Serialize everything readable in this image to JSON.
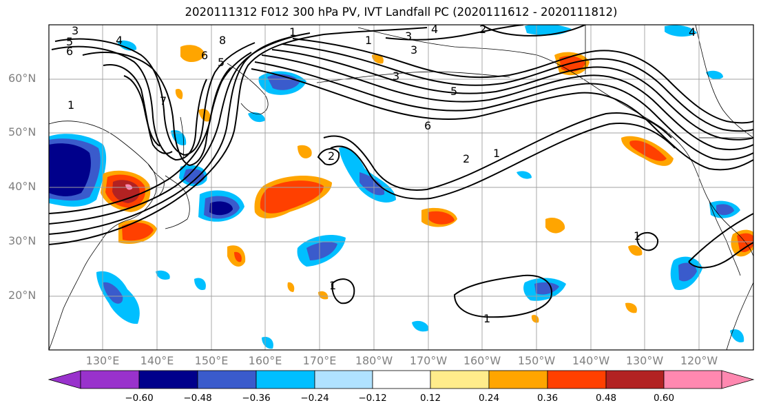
{
  "title": "2020111312 F012 300 hPa PV, IVT Landfall PC (2020111612 - 2020111812)",
  "map": {
    "lat_labels": [
      "60°N",
      "50°N",
      "40°N",
      "30°N",
      "20°N"
    ],
    "lon_labels": [
      "130°E",
      "140°E",
      "150°E",
      "160°E",
      "170°E",
      "180°W",
      "170°W",
      "160°W",
      "150°W",
      "140°W",
      "130°W",
      "120°W"
    ],
    "contour_labels": [
      "3",
      "5",
      "6",
      "4",
      "8",
      "6",
      "5",
      "1",
      "1",
      "3",
      "4",
      "2",
      "3",
      "3",
      "5",
      "6",
      "2",
      "1",
      "1",
      "2",
      "1",
      "1",
      "1",
      "7",
      "4"
    ]
  },
  "colorbar": {
    "ticks": [
      "−0.60",
      "−0.48",
      "−0.36",
      "−0.24",
      "−0.12",
      "0.12",
      "0.24",
      "0.36",
      "0.48",
      "0.60"
    ],
    "colors": [
      "#9932cc",
      "#00008b",
      "#3a5bcc",
      "#00bfff",
      "#b0e2ff",
      "#ffffff",
      "#ffec8b",
      "#ffa500",
      "#ff4000",
      "#b22222",
      "#ff88b0"
    ]
  }
}
